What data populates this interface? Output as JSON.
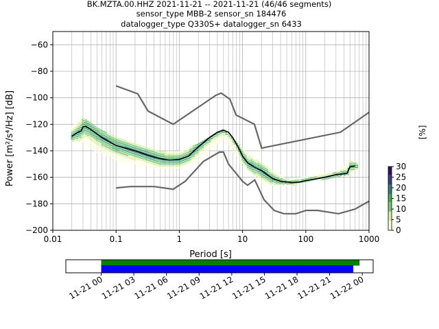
{
  "title": {
    "line1": "BK.MZTA.00.HHZ   2021-11-21 -- 2021-11-21  (46/46 segments)",
    "line2": "sensor_type MBB-2 sensor_sn 184476",
    "line3": "datalogger_type Q330S+ datalogger_sn 6433"
  },
  "chart_data": [
    {
      "type": "heatmap",
      "title": "BK.MZTA.00.HHZ   2021-11-21 -- 2021-11-21  (46/46 segments)",
      "xlabel": "Period [s]",
      "ylabel": "Power [m²/s⁴/Hz] [dB]",
      "xscale": "log",
      "xlim": [
        0.01,
        1000
      ],
      "ylim": [
        -200,
        -50
      ],
      "x_tick_labels": [
        "0.01",
        "0.1",
        "1",
        "10",
        "100",
        "1000"
      ],
      "y_tick_labels": [
        "−60",
        "−80",
        "−100",
        "−120",
        "−140",
        "−160",
        "−180",
        "−200"
      ],
      "x_ticks": [
        0.01,
        0.1,
        1,
        10,
        100,
        1000
      ],
      "y_ticks": [
        -60,
        -80,
        -100,
        -120,
        -140,
        -160,
        -180,
        -200
      ],
      "grid": true,
      "colorbar": {
        "label": "[%]",
        "min": 0,
        "max": 30,
        "ticks": [
          0,
          5,
          10,
          15,
          20,
          25,
          30
        ],
        "colors": [
          "#ffffe0",
          "#d9f0a3",
          "#78c679",
          "#41ab5d",
          "#2c7f7f",
          "#3b3b8f",
          "#3b0f5f"
        ]
      },
      "noise_models": {
        "high": [
          [
            0.1,
            -91
          ],
          [
            0.22,
            -97
          ],
          [
            0.32,
            -110
          ],
          [
            0.8,
            -120
          ],
          [
            3.8,
            -98
          ],
          [
            4.6,
            -96.5
          ],
          [
            6.3,
            -101
          ],
          [
            7.9,
            -113
          ],
          [
            15.4,
            -120
          ],
          [
            20,
            -138
          ],
          [
            354,
            -126
          ],
          [
            1000,
            -111
          ]
        ],
        "low": [
          [
            0.1,
            -168
          ],
          [
            0.17,
            -167
          ],
          [
            0.4,
            -167
          ],
          [
            0.8,
            -169
          ],
          [
            1.24,
            -163
          ],
          [
            2.4,
            -148
          ],
          [
            4.3,
            -141
          ],
          [
            5,
            -141
          ],
          [
            6,
            -150
          ],
          [
            10,
            -163
          ],
          [
            12,
            -166
          ],
          [
            15.6,
            -162
          ],
          [
            21.9,
            -177
          ],
          [
            31.6,
            -185
          ],
          [
            45,
            -187.5
          ],
          [
            70,
            -187.5
          ],
          [
            101,
            -185
          ],
          [
            154,
            -185
          ],
          [
            328,
            -187.5
          ],
          [
            600,
            -184
          ],
          [
            1000,
            -178
          ]
        ]
      },
      "median": [
        [
          0.02,
          -129
        ],
        [
          0.025,
          -126
        ],
        [
          0.028,
          -125
        ],
        [
          0.03,
          -122
        ],
        [
          0.033,
          -121.5
        ],
        [
          0.04,
          -124
        ],
        [
          0.06,
          -130
        ],
        [
          0.1,
          -136
        ],
        [
          0.2,
          -140
        ],
        [
          0.35,
          -144
        ],
        [
          0.5,
          -146
        ],
        [
          0.7,
          -147
        ],
        [
          1.0,
          -146.5
        ],
        [
          1.4,
          -144
        ],
        [
          2.0,
          -137
        ],
        [
          3.0,
          -130
        ],
        [
          4.0,
          -126
        ],
        [
          5.0,
          -124.5
        ],
        [
          6.0,
          -126
        ],
        [
          7.0,
          -130
        ],
        [
          8.5,
          -137
        ],
        [
          10,
          -144
        ],
        [
          12,
          -149
        ],
        [
          15,
          -152
        ],
        [
          20,
          -155
        ],
        [
          30,
          -161
        ],
        [
          40,
          -163
        ],
        [
          60,
          -164
        ],
        [
          80,
          -163.5
        ],
        [
          100,
          -162.5
        ],
        [
          150,
          -161
        ],
        [
          200,
          -160
        ],
        [
          300,
          -158
        ],
        [
          450,
          -157
        ],
        [
          500,
          -152
        ],
        [
          600,
          -151.5
        ]
      ],
      "density_band": {
        "x": [
          0.02,
          0.03,
          0.05,
          0.1,
          0.2,
          0.5,
          1,
          2,
          5,
          10,
          20,
          50,
          100,
          300,
          500,
          650
        ],
        "upper": [
          -122,
          -115,
          -123,
          -130,
          -135,
          -141,
          -141,
          -135,
          -124,
          -139,
          -150,
          -162,
          -160,
          -155,
          -148,
          -148
        ],
        "lower": [
          -133,
          -134,
          -141,
          -147,
          -151,
          -154,
          -153,
          -148,
          -131,
          -150,
          -165,
          -167,
          -164,
          -160,
          -158,
          -154
        ]
      }
    },
    {
      "type": "bar",
      "title": "",
      "x_tick_labels": [
        "11-21 00",
        "11-21 03",
        "11-21 06",
        "11-21 09",
        "11-21 12",
        "11-21 15",
        "11-21 18",
        "11-21 21",
        "11-22 00"
      ],
      "x_range": [
        "2021-11-20 20:45",
        "2021-11-22 01:00"
      ],
      "series": [
        {
          "start": "2021-11-21 00:00",
          "end": "2021-11-21 23:45",
          "color": "#008000"
        },
        {
          "start": "2021-11-21 00:00",
          "end": "2021-11-21 23:10",
          "color": "#0000ff"
        }
      ]
    }
  ]
}
